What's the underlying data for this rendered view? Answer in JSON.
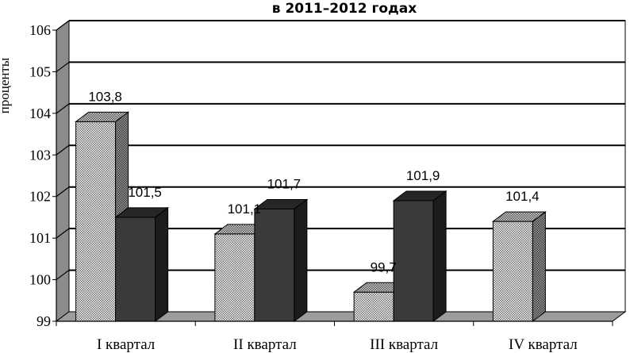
{
  "chart_data": {
    "type": "bar",
    "title": "в 2011–2012 годах",
    "ylabel": "проценты",
    "xlabel": "",
    "categories": [
      "I квартал",
      "II квартал",
      "III квартал",
      "IV квартал"
    ],
    "series": [
      {
        "values": [
          103.8,
          101.1,
          99.7,
          101.4
        ],
        "data_labels": [
          "103,8",
          "101,1",
          "99,7",
          "101,4"
        ],
        "pattern": "checkered"
      },
      {
        "values": [
          101.5,
          101.7,
          101.9,
          null
        ],
        "data_labels": [
          "101,5",
          "101,7",
          "101,9",
          ""
        ],
        "pattern": "dark"
      }
    ],
    "ylim": [
      99,
      106
    ],
    "yticks": [
      99,
      100,
      101,
      102,
      103,
      104,
      105,
      106
    ],
    "grid": true,
    "style": "3d",
    "colors": {
      "dark_front": "#3a3a3a",
      "dark_top": "#262626",
      "dark_side": "#1c1c1c",
      "grid": "#000000",
      "wall": "#ffffff",
      "floor": "#9c9c9c"
    }
  }
}
